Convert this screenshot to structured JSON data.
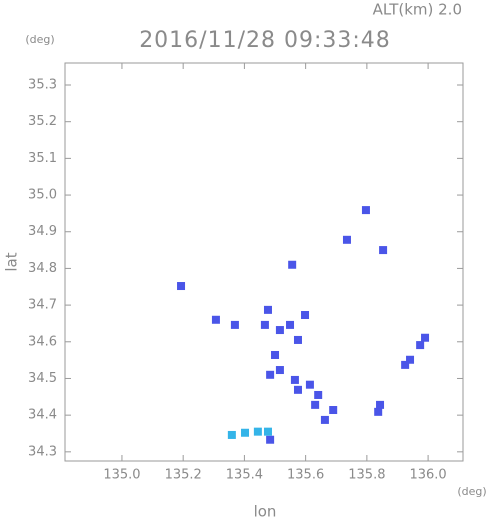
{
  "chart_data": {
    "type": "scatter",
    "title": "2016/11/28 09:33:48",
    "subtitle": "ALT(km) 2.0",
    "y_unit": "(deg)",
    "x_unit": "(deg)",
    "xlabel": "lon",
    "ylabel": "lat",
    "xlim": [
      134.814,
      136.114
    ],
    "ylim": [
      34.275,
      35.36
    ],
    "xticks": [
      {
        "value": 135,
        "label": "135.0"
      },
      135.2,
      135.4,
      135.6,
      135.8,
      {
        "value": 136,
        "label": "136.0"
      }
    ],
    "yticks": [
      34.3,
      34.4,
      34.5,
      34.6,
      34.7,
      34.8,
      34.9,
      {
        "value": 35,
        "label": "35.0"
      },
      35.1,
      35.2,
      35.3
    ],
    "series": [
      {
        "color": "#4a55e8",
        "x": [
          135.193,
          135.797,
          135.735,
          135.853,
          135.556,
          135.307,
          135.369,
          135.467,
          135.477,
          135.516,
          135.549,
          135.598,
          135.575,
          135.5,
          135.484,
          135.516,
          135.565,
          135.575,
          135.614,
          135.641,
          135.631,
          135.663,
          135.69,
          135.837,
          135.843,
          135.925,
          135.941,
          135.974,
          135.99,
          135.484
        ],
        "values": [
          34.752,
          34.959,
          34.878,
          34.85,
          34.81,
          34.66,
          34.646,
          34.646,
          34.687,
          34.632,
          34.646,
          34.673,
          34.605,
          34.564,
          34.51,
          34.523,
          34.496,
          34.469,
          34.483,
          34.455,
          34.428,
          34.387,
          34.414,
          34.409,
          34.428,
          34.537,
          34.551,
          34.591,
          34.611,
          34.333
        ]
      },
      {
        "color": "#34b4e8",
        "x": [
          135.359,
          135.402,
          135.444,
          135.477
        ],
        "values": [
          34.346,
          34.352,
          34.355,
          34.355
        ]
      }
    ]
  }
}
